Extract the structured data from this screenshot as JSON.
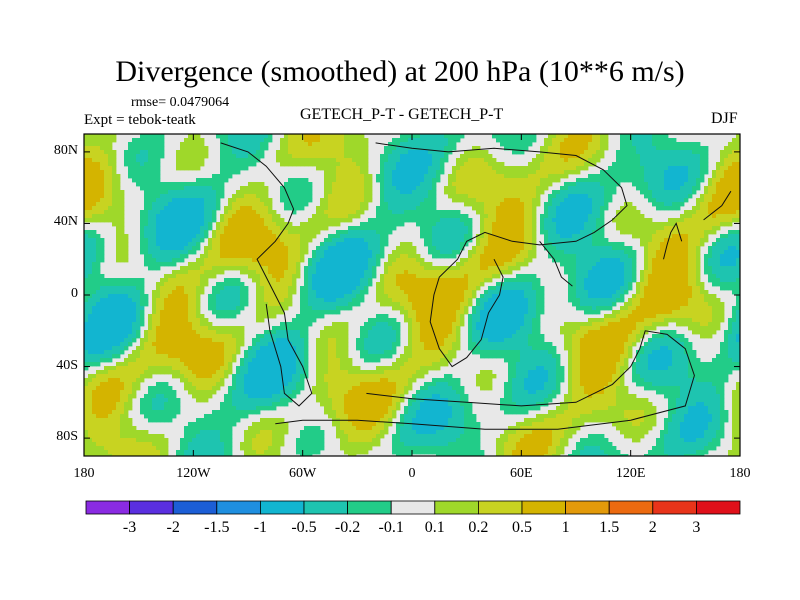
{
  "title": "Divergence (smoothed) at 200 hPa (10**6 m/s)",
  "rmse_text": "rmse= 0.0479064",
  "expt_text": "Expt = tebok-teatk",
  "center_label": "GETECH_P-T - GETECH_P-T",
  "season": "DJF",
  "map": {
    "lon_range": [
      -180,
      180
    ],
    "lat_range": [
      -90,
      90
    ],
    "lat_ticks": [
      {
        "value": 80,
        "label": "80N"
      },
      {
        "value": 40,
        "label": "40N"
      },
      {
        "value": 0,
        "label": "0"
      },
      {
        "value": -40,
        "label": "40S"
      },
      {
        "value": -80,
        "label": "80S"
      }
    ],
    "lon_ticks": [
      {
        "value": -180,
        "label": "180"
      },
      {
        "value": -120,
        "label": "120W"
      },
      {
        "value": -60,
        "label": "60W"
      },
      {
        "value": 0,
        "label": "0"
      },
      {
        "value": 60,
        "label": "60E"
      },
      {
        "value": 120,
        "label": "120E"
      },
      {
        "value": 180,
        "label": "180"
      }
    ]
  },
  "colorbar": {
    "labels": [
      "-3",
      "-2",
      "-1.5",
      "-1",
      "-0.5",
      "-0.2",
      "-0.1",
      "0.1",
      "0.2",
      "0.5",
      "1",
      "1.5",
      "2",
      "3"
    ],
    "colors": [
      "#8a2be2",
      "#5a2fe0",
      "#1c5ed6",
      "#1f8fe0",
      "#12b5d0",
      "#1ec4b0",
      "#22cc88",
      "#e8e8e8",
      "#9fd82a",
      "#c8d321",
      "#d4b400",
      "#e39a0a",
      "#ec6a10",
      "#e8341a",
      "#e0101a"
    ]
  }
}
